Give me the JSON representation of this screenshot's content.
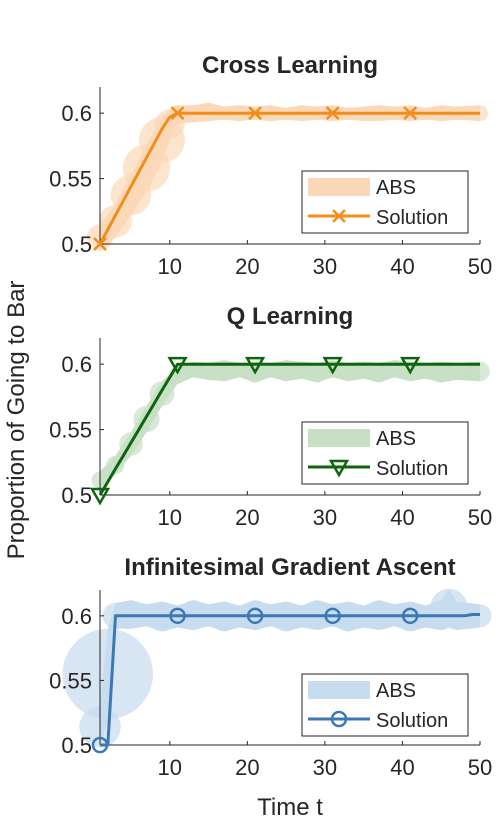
{
  "figure": {
    "ylabel": "Proportion of Going to Bar",
    "xlabel": "Time t"
  },
  "chart_data": [
    {
      "type": "line",
      "title": "Cross Learning",
      "xlim": [
        1,
        50
      ],
      "ylim": [
        0.5,
        0.62
      ],
      "xticks": [
        10,
        20,
        30,
        40,
        50
      ],
      "yticks": [
        0.5,
        0.55,
        0.6
      ],
      "ytick_labels": [
        "0.5",
        "0.55",
        "0.6"
      ],
      "color": "#F28C1B",
      "band_color": "#FBD9B8",
      "marker": "x",
      "legend": [
        "ABS",
        "Solution"
      ],
      "legend_position": "bottom-right",
      "series": [
        {
          "name": "Solution",
          "x": [
            1,
            2,
            3,
            4,
            5,
            6,
            7,
            8,
            9,
            10,
            11,
            12,
            13,
            14,
            15,
            16,
            17,
            18,
            19,
            20,
            21,
            22,
            23,
            24,
            25,
            26,
            27,
            28,
            29,
            30,
            31,
            32,
            33,
            34,
            35,
            36,
            37,
            38,
            39,
            40,
            41,
            42,
            43,
            44,
            45,
            46,
            47,
            48,
            49,
            50
          ],
          "y": [
            0.5,
            0.511,
            0.522,
            0.533,
            0.544,
            0.555,
            0.566,
            0.577,
            0.588,
            0.597,
            0.6,
            0.6,
            0.6,
            0.6,
            0.6,
            0.6,
            0.6,
            0.6,
            0.6,
            0.6,
            0.6,
            0.6,
            0.6,
            0.6,
            0.6,
            0.6,
            0.6,
            0.6,
            0.6,
            0.6,
            0.6,
            0.6,
            0.6,
            0.6,
            0.6,
            0.6,
            0.6,
            0.6,
            0.6,
            0.6,
            0.6,
            0.6,
            0.6,
            0.6,
            0.6,
            0.6,
            0.6,
            0.6,
            0.6,
            0.6
          ],
          "markers_at": [
            1,
            11,
            21,
            31,
            41
          ]
        },
        {
          "name": "ABS",
          "x": [
            1,
            3,
            5,
            7,
            9,
            10,
            11,
            13,
            15,
            17,
            19,
            21,
            23,
            25,
            27,
            29,
            31,
            33,
            35,
            37,
            39,
            41,
            43,
            45,
            47,
            50
          ],
          "upper": [
            0.515,
            0.53,
            0.553,
            0.576,
            0.597,
            0.603,
            0.606,
            0.606,
            0.608,
            0.605,
            0.606,
            0.605,
            0.606,
            0.604,
            0.606,
            0.605,
            0.606,
            0.604,
            0.605,
            0.606,
            0.605,
            0.606,
            0.604,
            0.606,
            0.605,
            0.606
          ],
          "lower": [
            0.495,
            0.505,
            0.522,
            0.54,
            0.562,
            0.58,
            0.592,
            0.593,
            0.594,
            0.595,
            0.594,
            0.595,
            0.594,
            0.595,
            0.594,
            0.595,
            0.594,
            0.595,
            0.594,
            0.594,
            0.595,
            0.594,
            0.595,
            0.594,
            0.595,
            0.594
          ]
        }
      ]
    },
    {
      "type": "line",
      "title": "Q Learning",
      "xlim": [
        1,
        50
      ],
      "ylim": [
        0.5,
        0.62
      ],
      "xticks": [
        10,
        20,
        30,
        40,
        50
      ],
      "yticks": [
        0.5,
        0.55,
        0.6
      ],
      "ytick_labels": [
        "0.5",
        "0.55",
        "0.6"
      ],
      "color": "#0E650E",
      "band_color": "#C8DFC6",
      "marker": "triangle-down",
      "legend": [
        "ABS",
        "Solution"
      ],
      "legend_position": "bottom-right",
      "series": [
        {
          "name": "Solution",
          "x": [
            1,
            2,
            3,
            4,
            5,
            6,
            7,
            8,
            9,
            10,
            11,
            12,
            13,
            14,
            15,
            16,
            17,
            18,
            19,
            20,
            21,
            22,
            23,
            24,
            25,
            26,
            27,
            28,
            29,
            30,
            31,
            32,
            33,
            34,
            35,
            36,
            37,
            38,
            39,
            40,
            41,
            42,
            43,
            44,
            45,
            46,
            47,
            48,
            49,
            50
          ],
          "y": [
            0.5,
            0.51,
            0.52,
            0.53,
            0.54,
            0.55,
            0.56,
            0.57,
            0.58,
            0.59,
            0.6,
            0.6,
            0.6,
            0.6,
            0.6,
            0.6,
            0.6,
            0.6,
            0.6,
            0.6,
            0.6,
            0.6,
            0.6,
            0.6,
            0.6,
            0.6,
            0.6,
            0.6,
            0.6,
            0.6,
            0.6,
            0.6,
            0.6,
            0.6,
            0.6,
            0.6,
            0.6,
            0.6,
            0.6,
            0.6,
            0.6,
            0.6,
            0.6,
            0.6,
            0.6,
            0.6,
            0.6,
            0.6,
            0.6,
            0.6
          ],
          "markers_at": [
            1,
            11,
            21,
            31,
            41
          ]
        },
        {
          "name": "ABS",
          "x": [
            1,
            3,
            5,
            7,
            9,
            11,
            13,
            15,
            17,
            19,
            21,
            23,
            25,
            27,
            29,
            31,
            33,
            35,
            37,
            39,
            41,
            43,
            45,
            47,
            50
          ],
          "upper": [
            0.518,
            0.53,
            0.548,
            0.568,
            0.587,
            0.598,
            0.602,
            0.601,
            0.603,
            0.601,
            0.602,
            0.601,
            0.603,
            0.602,
            0.601,
            0.603,
            0.601,
            0.602,
            0.601,
            0.603,
            0.602,
            0.601,
            0.602,
            0.601,
            0.602
          ],
          "lower": [
            0.505,
            0.516,
            0.53,
            0.548,
            0.568,
            0.585,
            0.59,
            0.588,
            0.587,
            0.59,
            0.586,
            0.59,
            0.587,
            0.589,
            0.586,
            0.59,
            0.587,
            0.589,
            0.586,
            0.59,
            0.587,
            0.589,
            0.586,
            0.588,
            0.587
          ]
        }
      ]
    },
    {
      "type": "line",
      "title": "Infinitesimal Gradient Ascent",
      "xlim": [
        1,
        50
      ],
      "ylim": [
        0.5,
        0.62
      ],
      "xticks": [
        10,
        20,
        30,
        40,
        50
      ],
      "yticks": [
        0.5,
        0.55,
        0.6
      ],
      "ytick_labels": [
        "0.5",
        "0.55",
        "0.6"
      ],
      "color": "#3C78B4",
      "band_color": "#C8DCEF",
      "marker": "circle",
      "legend": [
        "ABS",
        "Solution"
      ],
      "legend_position": "bottom-right",
      "series": [
        {
          "name": "Solution",
          "x": [
            1,
            2,
            3,
            4,
            5,
            6,
            7,
            8,
            9,
            10,
            11,
            12,
            13,
            14,
            15,
            16,
            17,
            18,
            19,
            20,
            21,
            22,
            23,
            24,
            25,
            26,
            27,
            28,
            29,
            30,
            31,
            32,
            33,
            34,
            35,
            36,
            37,
            38,
            39,
            40,
            41,
            42,
            43,
            44,
            45,
            46,
            47,
            48,
            49,
            50
          ],
          "y": [
            0.5,
            0.5,
            0.6,
            0.6,
            0.6,
            0.6,
            0.6,
            0.6,
            0.6,
            0.6,
            0.6,
            0.6,
            0.6,
            0.6,
            0.6,
            0.6,
            0.6,
            0.6,
            0.6,
            0.6,
            0.6,
            0.6,
            0.6,
            0.6,
            0.6,
            0.6,
            0.6,
            0.6,
            0.6,
            0.6,
            0.6,
            0.6,
            0.6,
            0.6,
            0.6,
            0.6,
            0.6,
            0.6,
            0.6,
            0.6,
            0.6,
            0.6,
            0.6,
            0.6,
            0.6,
            0.6,
            0.6,
            0.6,
            0.601,
            0.601
          ],
          "markers_at": [
            1,
            11,
            21,
            31,
            41
          ]
        },
        {
          "name": "ABS",
          "x": [
            1,
            2,
            3,
            5,
            7,
            9,
            11,
            13,
            15,
            17,
            19,
            21,
            23,
            25,
            27,
            29,
            31,
            33,
            35,
            37,
            39,
            41,
            43,
            45,
            46,
            47,
            50
          ],
          "upper": [
            0.53,
            0.59,
            0.61,
            0.612,
            0.609,
            0.611,
            0.608,
            0.612,
            0.609,
            0.611,
            0.608,
            0.612,
            0.609,
            0.611,
            0.608,
            0.612,
            0.609,
            0.611,
            0.608,
            0.612,
            0.609,
            0.611,
            0.608,
            0.612,
            0.621,
            0.611,
            0.609
          ],
          "lower": [
            0.498,
            0.52,
            0.59,
            0.59,
            0.592,
            0.588,
            0.591,
            0.589,
            0.592,
            0.588,
            0.591,
            0.589,
            0.592,
            0.588,
            0.591,
            0.589,
            0.592,
            0.588,
            0.591,
            0.589,
            0.592,
            0.588,
            0.591,
            0.589,
            0.592,
            0.589,
            0.591
          ]
        }
      ]
    }
  ]
}
